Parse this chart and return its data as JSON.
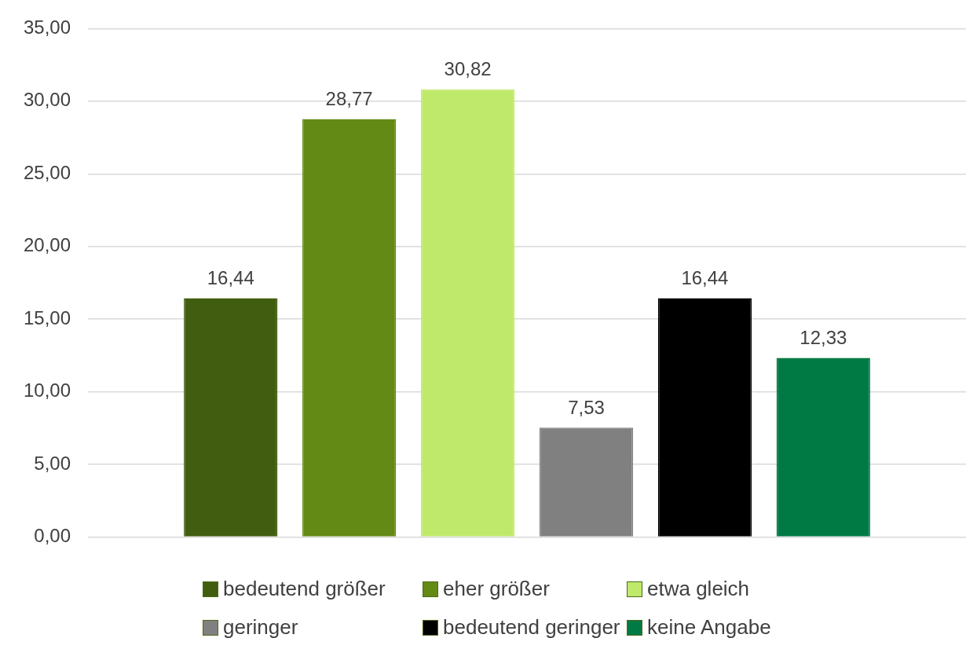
{
  "chart_data": {
    "type": "bar",
    "categories": [
      null
    ],
    "series": [
      {
        "name": "bedeutend größer",
        "color": "#415e10",
        "values": [
          16.44
        ],
        "value_labels": [
          "16,44"
        ]
      },
      {
        "name": "eher größer",
        "color": "#638a14",
        "values": [
          28.77
        ],
        "value_labels": [
          "28,77"
        ]
      },
      {
        "name": "etwa gleich",
        "color": "#bfe96a",
        "values": [
          30.82
        ],
        "value_labels": [
          "30,82"
        ]
      },
      {
        "name": "geringer",
        "color": "#808080",
        "values": [
          7.53
        ],
        "value_labels": [
          "7,53"
        ]
      },
      {
        "name": "bedeutend geringer",
        "color": "#000000",
        "values": [
          16.44
        ],
        "value_labels": [
          "16,44"
        ]
      },
      {
        "name": "keine Angabe",
        "color": "#007a45",
        "values": [
          12.33
        ],
        "value_labels": [
          "12,33"
        ]
      }
    ],
    "ylim": [
      0,
      35
    ],
    "yticks": [
      {
        "value": 0,
        "label": "0,00"
      },
      {
        "value": 5,
        "label": "5,00"
      },
      {
        "value": 10,
        "label": "10,00"
      },
      {
        "value": 15,
        "label": "15,00"
      },
      {
        "value": 20,
        "label": "20,00"
      },
      {
        "value": 25,
        "label": "25,00"
      },
      {
        "value": 30,
        "label": "30,00"
      },
      {
        "value": 35,
        "label": "35,00"
      }
    ],
    "grid": "y",
    "legend": "bottom",
    "tick_labels": "y"
  }
}
